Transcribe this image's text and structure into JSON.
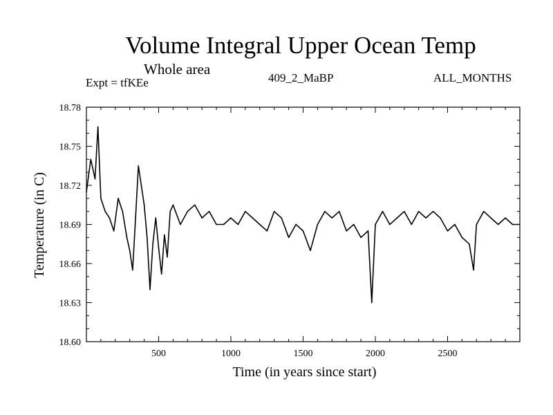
{
  "chart_data": {
    "type": "line",
    "title": "Volume Integral Upper Ocean Temp",
    "subtitle": "Whole area",
    "expt_label": "Expt = tfKEe",
    "run_label": "409_2_MaBP",
    "months_label": "ALL_MONTHS",
    "xlabel": "Time (in years since start)",
    "ylabel": "Temperature (in C)",
    "xlim": [
      0,
      3000
    ],
    "ylim": [
      18.6,
      18.78
    ],
    "x_ticks": [
      500,
      1000,
      1500,
      2000,
      2500
    ],
    "x_tick_labels": [
      "500",
      "1000",
      "1500",
      "2000",
      "2500"
    ],
    "y_ticks": [
      18.6,
      18.63,
      18.66,
      18.69,
      18.72,
      18.75,
      18.78
    ],
    "y_tick_labels": [
      "18.60",
      "18.63",
      "18.66",
      "18.69",
      "18.72",
      "18.75",
      "18.78"
    ],
    "grid": false,
    "series": [
      {
        "color": "#000000",
        "x": [
          0,
          30,
          60,
          80,
          100,
          130,
          160,
          190,
          220,
          250,
          280,
          300,
          320,
          340,
          360,
          380,
          400,
          420,
          440,
          460,
          480,
          500,
          520,
          540,
          560,
          580,
          600,
          650,
          700,
          750,
          800,
          850,
          900,
          950,
          1000,
          1050,
          1100,
          1150,
          1200,
          1250,
          1300,
          1350,
          1400,
          1450,
          1500,
          1550,
          1600,
          1650,
          1700,
          1750,
          1800,
          1850,
          1900,
          1950,
          1975,
          2000,
          2050,
          2100,
          2150,
          2200,
          2250,
          2300,
          2350,
          2400,
          2450,
          2500,
          2550,
          2600,
          2650,
          2680,
          2700,
          2750,
          2800,
          2850,
          2900,
          2950,
          3000
        ],
        "values": [
          18.715,
          18.74,
          18.725,
          18.765,
          18.71,
          18.7,
          18.695,
          18.685,
          18.71,
          18.7,
          18.68,
          18.67,
          18.655,
          18.695,
          18.735,
          18.72,
          18.705,
          18.68,
          18.64,
          18.675,
          18.695,
          18.672,
          18.652,
          18.682,
          18.665,
          18.7,
          18.705,
          18.69,
          18.7,
          18.705,
          18.695,
          18.7,
          18.69,
          18.69,
          18.695,
          18.69,
          18.7,
          18.695,
          18.69,
          18.685,
          18.7,
          18.695,
          18.68,
          18.69,
          18.685,
          18.67,
          18.69,
          18.7,
          18.695,
          18.7,
          18.685,
          18.69,
          18.68,
          18.685,
          18.63,
          18.69,
          18.7,
          18.69,
          18.695,
          18.7,
          18.69,
          18.7,
          18.695,
          18.7,
          18.695,
          18.685,
          18.69,
          18.68,
          18.675,
          18.655,
          18.69,
          18.7,
          18.695,
          18.69,
          18.695,
          18.69,
          18.69
        ]
      }
    ]
  }
}
